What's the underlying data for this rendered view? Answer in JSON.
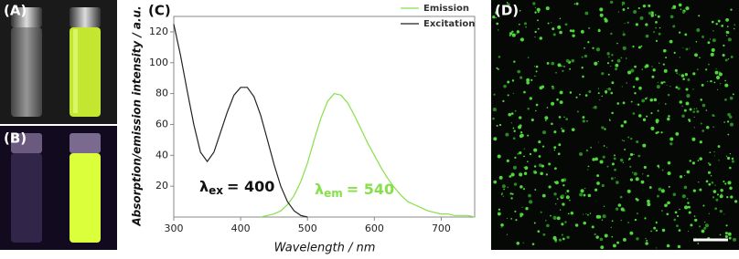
{
  "panels": [
    "(A)",
    "(B)",
    "(C)",
    "(D)"
  ],
  "chart_data": {
    "type": "line",
    "x_label": "Wavelength / nm",
    "y_label": "Absorption/emission intensity / a.u.",
    "x": [
      300,
      310,
      320,
      330,
      340,
      350,
      360,
      370,
      380,
      390,
      400,
      410,
      420,
      430,
      440,
      450,
      460,
      470,
      480,
      490,
      500,
      510,
      520,
      530,
      540,
      550,
      560,
      570,
      580,
      590,
      600,
      610,
      620,
      630,
      640,
      650,
      660,
      670,
      680,
      690,
      700,
      710,
      720,
      730,
      740,
      750
    ],
    "series": [
      {
        "name": "Emission",
        "color": "#86e04a",
        "values": [
          null,
          null,
          null,
          null,
          null,
          null,
          null,
          null,
          null,
          null,
          null,
          null,
          null,
          0,
          1,
          2,
          4,
          8,
          14,
          23,
          35,
          50,
          64,
          75,
          80,
          79,
          74,
          66,
          57,
          48,
          40,
          32,
          25,
          19,
          14,
          10,
          8,
          6,
          4,
          3,
          2,
          2,
          1,
          1,
          1,
          0
        ]
      },
      {
        "name": "Excitation",
        "color": "#222222",
        "values": [
          125,
          105,
          82,
          60,
          42,
          36,
          42,
          55,
          68,
          79,
          84,
          84,
          78,
          66,
          50,
          34,
          20,
          10,
          4,
          1,
          0,
          null,
          null,
          null,
          null,
          null,
          null,
          null,
          null,
          null,
          null,
          null,
          null,
          null,
          null,
          null,
          null,
          null,
          null,
          null,
          null,
          null,
          null,
          null,
          null,
          null
        ]
      }
    ],
    "annotations": [
      {
        "symbol": "λ",
        "sub": "ex",
        "text": "= 400",
        "color": "#111111"
      },
      {
        "symbol": "λ",
        "sub": "em",
        "text": "= 540",
        "color": "#86e04a"
      }
    ],
    "xlim": [
      300,
      750
    ],
    "xticks": [
      300,
      400,
      500,
      600,
      700
    ],
    "ylim": [
      0,
      130
    ],
    "yticks": [
      20,
      40,
      60,
      80,
      100,
      120
    ],
    "legend": "upper-right"
  }
}
